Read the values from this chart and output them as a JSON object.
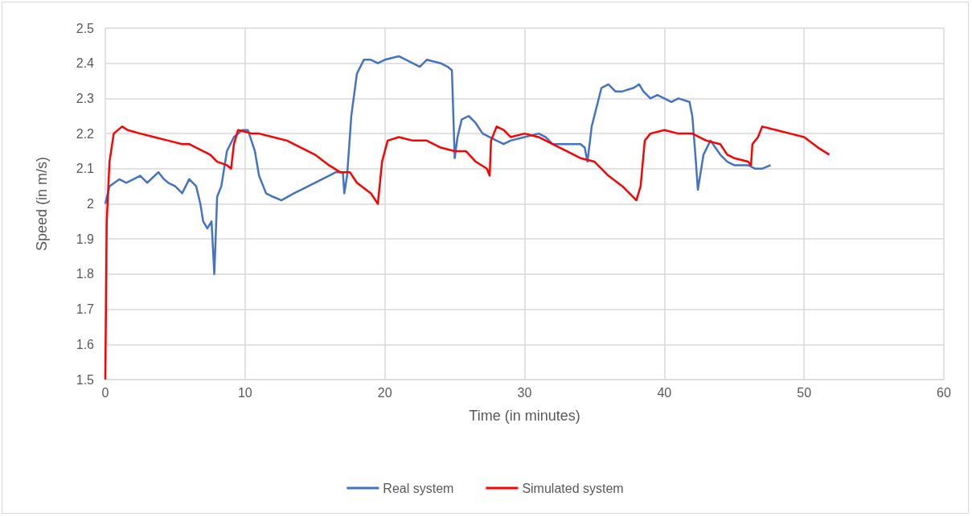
{
  "chart_data": {
    "type": "line",
    "xlabel": "Time (in minutes)",
    "ylabel": "Speed (in m/s)",
    "xlim": [
      0,
      60
    ],
    "xticks": [
      0,
      10,
      20,
      30,
      40,
      50,
      60
    ],
    "ylim": [
      1.5,
      2.5
    ],
    "yticks": [
      1.5,
      1.6,
      1.7,
      1.8,
      1.9,
      2,
      2.1,
      2.2,
      2.3,
      2.4,
      2.5
    ],
    "grid": true,
    "legend": "bottom",
    "marker": "none",
    "line_style": "solid",
    "series": [
      {
        "name": "Real system",
        "color": "#4472c4",
        "x": [
          0,
          0.3,
          1,
          1.5,
          2.5,
          3,
          3.8,
          4.2,
          4.5,
          5,
          5.5,
          6,
          6.5,
          6.8,
          7,
          7.3,
          7.6,
          7.8,
          8,
          8.3,
          8.7,
          9.2,
          9.8,
          10.2,
          10.7,
          11,
          11.5,
          12,
          12.6,
          13.5,
          14,
          15,
          16,
          16.5,
          17,
          17.1,
          17.3,
          17.6,
          18,
          18.5,
          19,
          19.5,
          20,
          21,
          22,
          22.5,
          23,
          24,
          24.5,
          24.8,
          25,
          25.2,
          25.5,
          26,
          26.5,
          27,
          28,
          28.5,
          29,
          30,
          31,
          31.5,
          32,
          33,
          34,
          34.3,
          34.5,
          34.8,
          35.5,
          36,
          36.5,
          37,
          37.8,
          38.2,
          38.5,
          39,
          39.5,
          40,
          40.5,
          41,
          41.8,
          42,
          42.2,
          42.4,
          42.8,
          43.3,
          44,
          44.5,
          45,
          46,
          46.5,
          47,
          47.6
        ],
        "values": [
          2.0,
          2.05,
          2.07,
          2.06,
          2.08,
          2.06,
          2.09,
          2.07,
          2.06,
          2.05,
          2.03,
          2.07,
          2.05,
          2.0,
          1.95,
          1.93,
          1.95,
          1.8,
          2.02,
          2.05,
          2.15,
          2.19,
          2.21,
          2.21,
          2.15,
          2.08,
          2.03,
          2.02,
          2.01,
          2.03,
          2.04,
          2.06,
          2.08,
          2.09,
          2.09,
          2.03,
          2.08,
          2.25,
          2.37,
          2.41,
          2.41,
          2.4,
          2.41,
          2.42,
          2.4,
          2.39,
          2.41,
          2.4,
          2.39,
          2.38,
          2.13,
          2.19,
          2.24,
          2.25,
          2.23,
          2.2,
          2.18,
          2.17,
          2.18,
          2.19,
          2.2,
          2.19,
          2.17,
          2.17,
          2.17,
          2.16,
          2.12,
          2.22,
          2.33,
          2.34,
          2.32,
          2.32,
          2.33,
          2.34,
          2.32,
          2.3,
          2.31,
          2.3,
          2.29,
          2.3,
          2.29,
          2.25,
          2.15,
          2.04,
          2.14,
          2.18,
          2.14,
          2.12,
          2.11,
          2.11,
          2.1,
          2.1,
          2.11
        ]
      },
      {
        "name": "Simulated system",
        "color": "#ff0000",
        "x": [
          0,
          0.1,
          0.3,
          0.6,
          1.2,
          1.6,
          2.5,
          3.5,
          4.5,
          5.5,
          6,
          6.5,
          7.5,
          8,
          8.7,
          9,
          9.2,
          9.5,
          10.5,
          11,
          12,
          13,
          14,
          15,
          16,
          16.8,
          17.5,
          18,
          19,
          19.5,
          19.8,
          20.2,
          21,
          22,
          23,
          24,
          25,
          25.8,
          26.5,
          27.3,
          27.5,
          27.6,
          28,
          28.5,
          29,
          30,
          31,
          32,
          33,
          34,
          35,
          36,
          37,
          38,
          38.3,
          38.6,
          39,
          40,
          41,
          42,
          43,
          44,
          44.5,
          45,
          46,
          46.2,
          46.3,
          46.7,
          47,
          48,
          49,
          50,
          51,
          51.8
        ],
        "values": [
          1.5,
          1.95,
          2.12,
          2.2,
          2.22,
          2.21,
          2.2,
          2.19,
          2.18,
          2.17,
          2.17,
          2.16,
          2.14,
          2.12,
          2.11,
          2.1,
          2.17,
          2.21,
          2.2,
          2.2,
          2.19,
          2.18,
          2.16,
          2.14,
          2.11,
          2.09,
          2.09,
          2.06,
          2.03,
          2.0,
          2.12,
          2.18,
          2.19,
          2.18,
          2.18,
          2.16,
          2.15,
          2.15,
          2.12,
          2.1,
          2.08,
          2.18,
          2.22,
          2.21,
          2.19,
          2.2,
          2.19,
          2.17,
          2.15,
          2.13,
          2.12,
          2.08,
          2.05,
          2.01,
          2.05,
          2.18,
          2.2,
          2.21,
          2.2,
          2.2,
          2.18,
          2.17,
          2.14,
          2.13,
          2.12,
          2.11,
          2.17,
          2.19,
          2.22,
          2.21,
          2.2,
          2.19,
          2.16,
          2.14
        ]
      }
    ]
  }
}
